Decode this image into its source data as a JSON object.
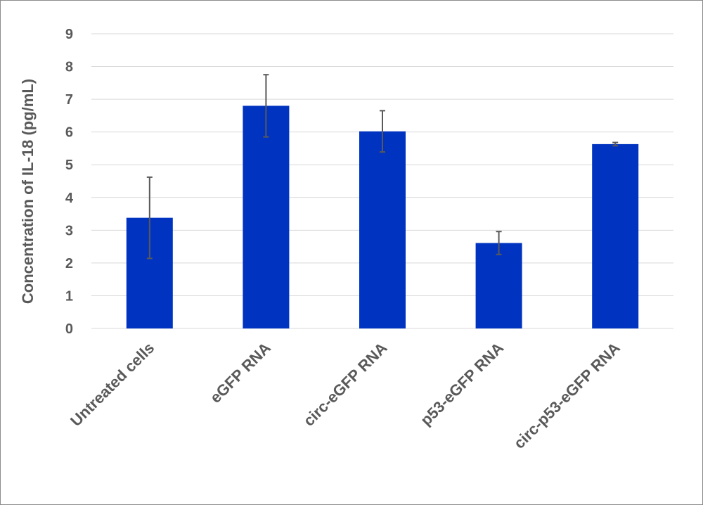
{
  "chart_data": {
    "type": "bar",
    "title": "",
    "xlabel": "",
    "ylabel": "Concentration of IL-18 (pg/mL)",
    "ylim": [
      0,
      9
    ],
    "yticks": [
      "0",
      "1",
      "2",
      "3",
      "4",
      "5",
      "6",
      "7",
      "8",
      "9"
    ],
    "grid": true,
    "legend": "none",
    "categories": [
      "Untreated cells",
      "eGFP RNA",
      "circ-eGFP RNA",
      "p53-eGFP RNA",
      "circ-p53-eGFP RNA"
    ],
    "values": [
      3.38,
      6.8,
      6.02,
      2.61,
      5.63
    ],
    "error": [
      1.24,
      0.95,
      0.63,
      0.35,
      0.05
    ],
    "bar_color": "#0033c0",
    "error_color": "#595959",
    "grid_color": "#d9d9d9"
  }
}
